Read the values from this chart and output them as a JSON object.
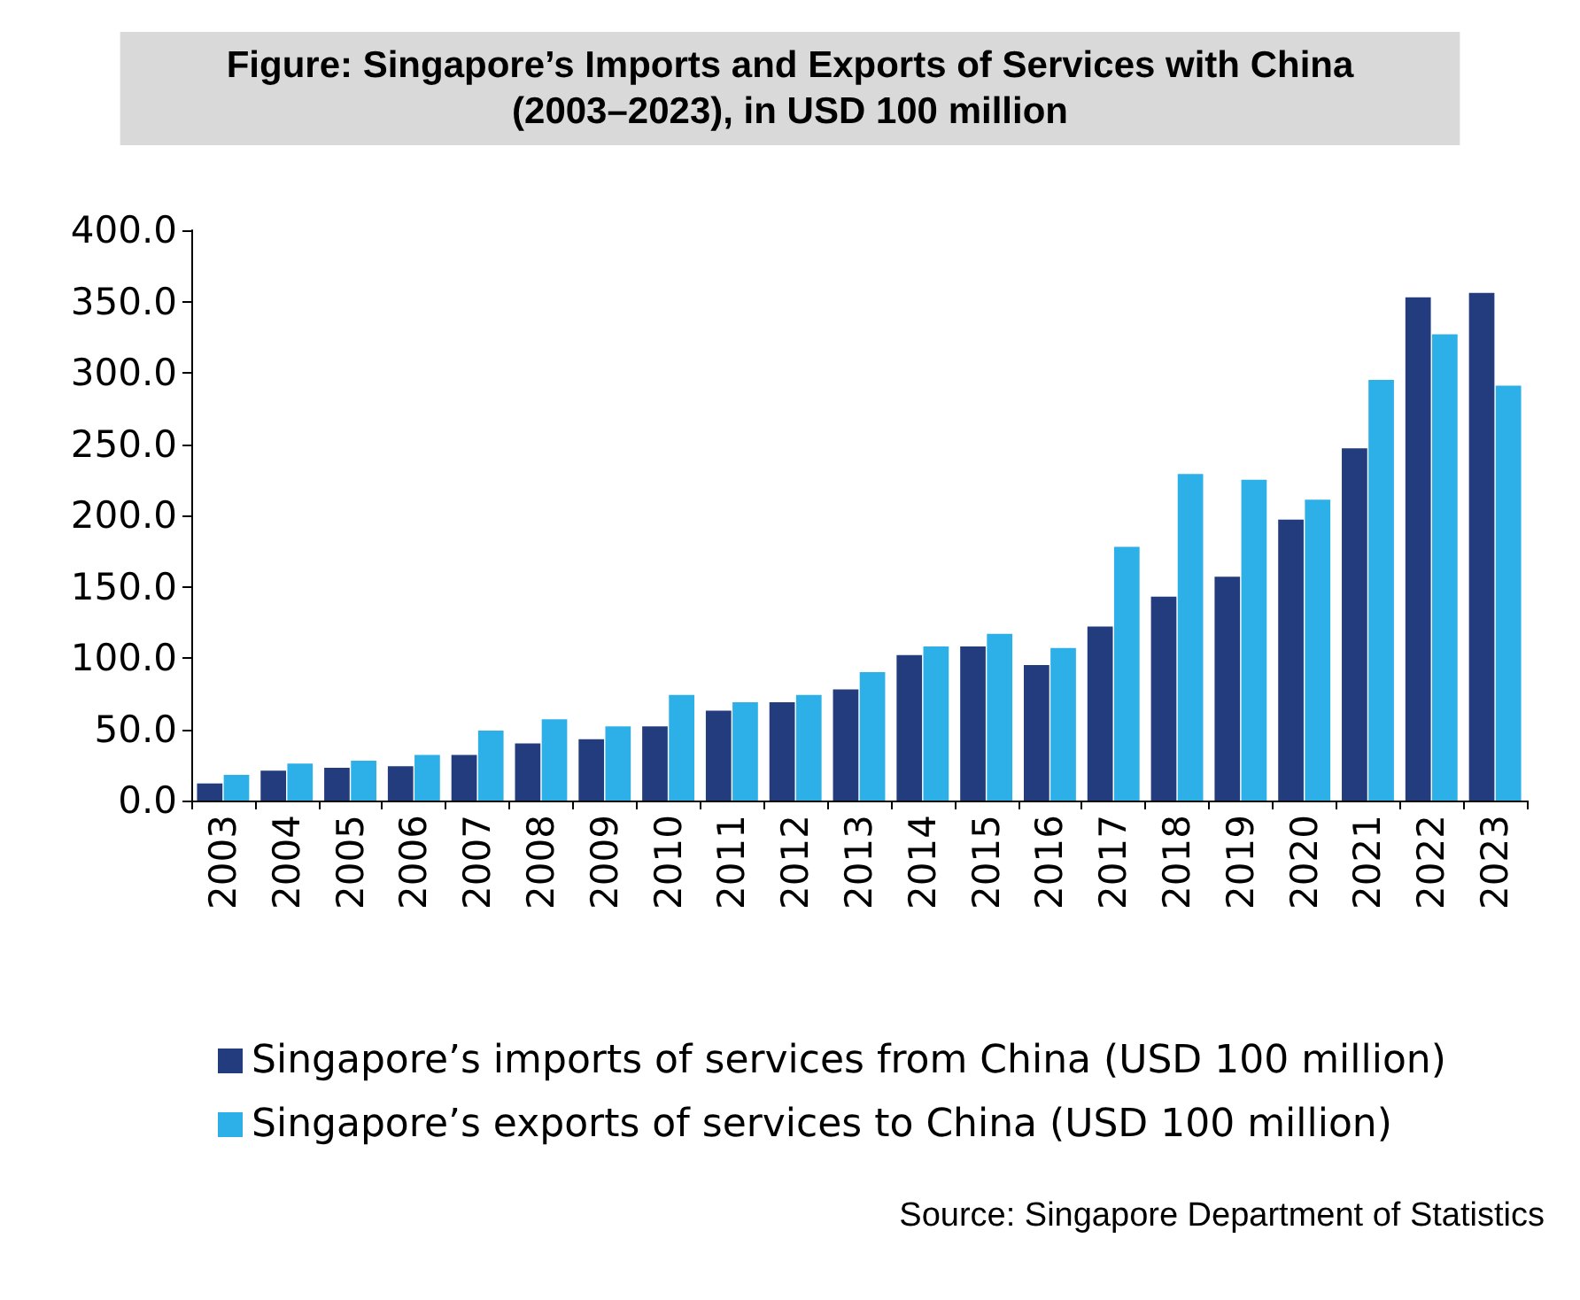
{
  "chart_data": {
    "type": "bar",
    "title": "Figure: Singapore’s Imports and Exports of Services with China\n(2003–2023), in USD 100 million",
    "categories": [
      "2003",
      "2004",
      "2005",
      "2006",
      "2007",
      "2008",
      "2009",
      "2010",
      "2011",
      "2012",
      "2013",
      "2014",
      "2015",
      "2016",
      "2017",
      "2018",
      "2019",
      "2020",
      "2021",
      "2022",
      "2023"
    ],
    "series": [
      {
        "name": "Singapore’s imports of services from China (USD 100 million)",
        "color": "#233c7e",
        "values": [
          12,
          21,
          23,
          24,
          32,
          40,
          43,
          52,
          63,
          69,
          78,
          102,
          108,
          95,
          122,
          143,
          157,
          197,
          247,
          353,
          356
        ]
      },
      {
        "name": "Singapore’s exports of services to China (USD 100 million)",
        "color": "#2db0e8",
        "values": [
          18,
          26,
          28,
          32,
          49,
          57,
          52,
          74,
          69,
          74,
          90,
          108,
          117,
          107,
          178,
          229,
          225,
          211,
          295,
          327,
          291
        ]
      }
    ],
    "ylim": [
      0,
      400
    ],
    "yticks": [
      {
        "value": 0,
        "label": "0.0"
      },
      {
        "value": 50,
        "label": "50.0"
      },
      {
        "value": 100,
        "label": "100.0"
      },
      {
        "value": 150,
        "label": "150.0"
      },
      {
        "value": 200,
        "label": "200.0"
      },
      {
        "value": 250,
        "label": "250.0"
      },
      {
        "value": 300,
        "label": "300.0"
      },
      {
        "value": 350,
        "label": "350.0"
      },
      {
        "value": 400,
        "label": "400.0"
      }
    ],
    "grid": false,
    "legend": "bottom",
    "annotations": [
      "Source: Singapore Department of Statistics"
    ]
  }
}
